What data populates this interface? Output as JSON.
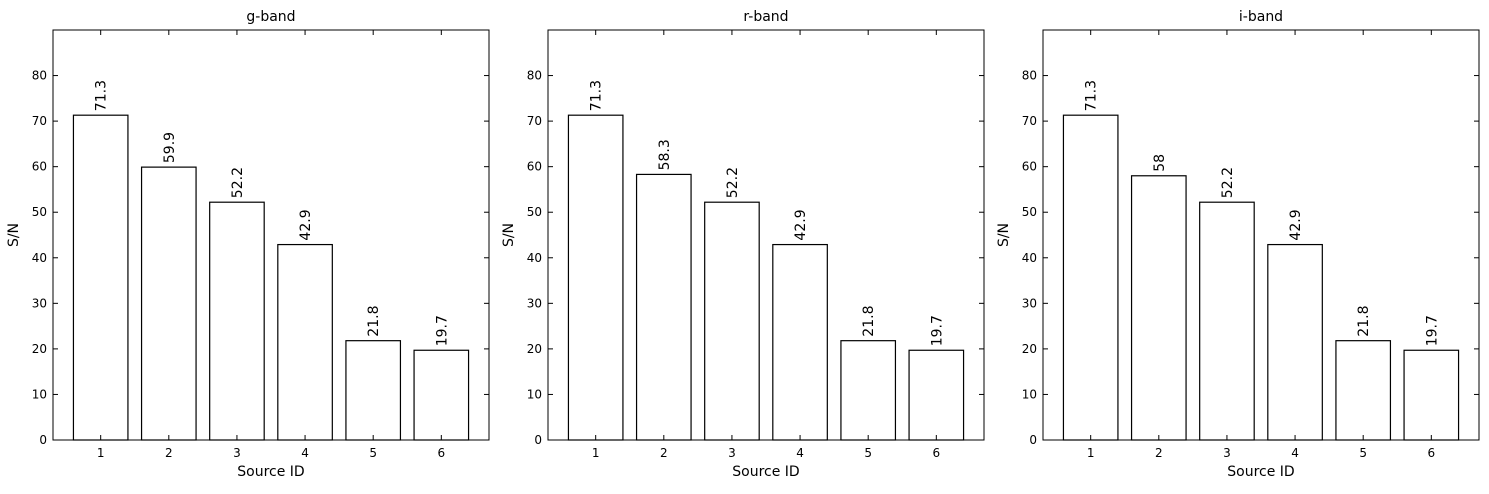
{
  "chart_data": [
    {
      "type": "bar",
      "title": "g-band",
      "xlabel": "Source ID",
      "ylabel": "S/N",
      "x": [
        1,
        2,
        3,
        4,
        5,
        6
      ],
      "values": [
        71.3,
        59.9,
        52.2,
        42.9,
        21.8,
        19.7
      ],
      "color": "#ffffff",
      "edgecolor": "#000000",
      "xlim": [
        0.3,
        6.7
      ],
      "xticks": [
        1,
        2,
        3,
        4,
        5,
        6
      ],
      "ylim": [
        0,
        90
      ],
      "yticks": [
        0,
        10,
        20,
        30,
        40,
        50,
        60,
        70,
        80
      ]
    },
    {
      "type": "bar",
      "title": "r-band",
      "xlabel": "Source ID",
      "ylabel": "S/N",
      "x": [
        1,
        2,
        3,
        4,
        5,
        6
      ],
      "values": [
        71.3,
        58.3,
        52.2,
        42.9,
        21.8,
        19.7
      ],
      "color": "#ffffff",
      "edgecolor": "#000000",
      "xlim": [
        0.3,
        6.7
      ],
      "xticks": [
        1,
        2,
        3,
        4,
        5,
        6
      ],
      "ylim": [
        0,
        90
      ],
      "yticks": [
        0,
        10,
        20,
        30,
        40,
        50,
        60,
        70,
        80
      ]
    },
    {
      "type": "bar",
      "title": "i-band",
      "xlabel": "Source ID",
      "ylabel": "S/N",
      "x": [
        1,
        2,
        3,
        4,
        5,
        6
      ],
      "values": [
        71.3,
        58,
        52.2,
        42.9,
        21.8,
        19.7
      ],
      "color": "#ffffff",
      "edgecolor": "#000000",
      "xlim": [
        0.3,
        6.7
      ],
      "xticks": [
        1,
        2,
        3,
        4,
        5,
        6
      ],
      "ylim": [
        0,
        90
      ],
      "yticks": [
        0,
        10,
        20,
        30,
        40,
        50,
        60,
        70,
        80
      ]
    }
  ]
}
